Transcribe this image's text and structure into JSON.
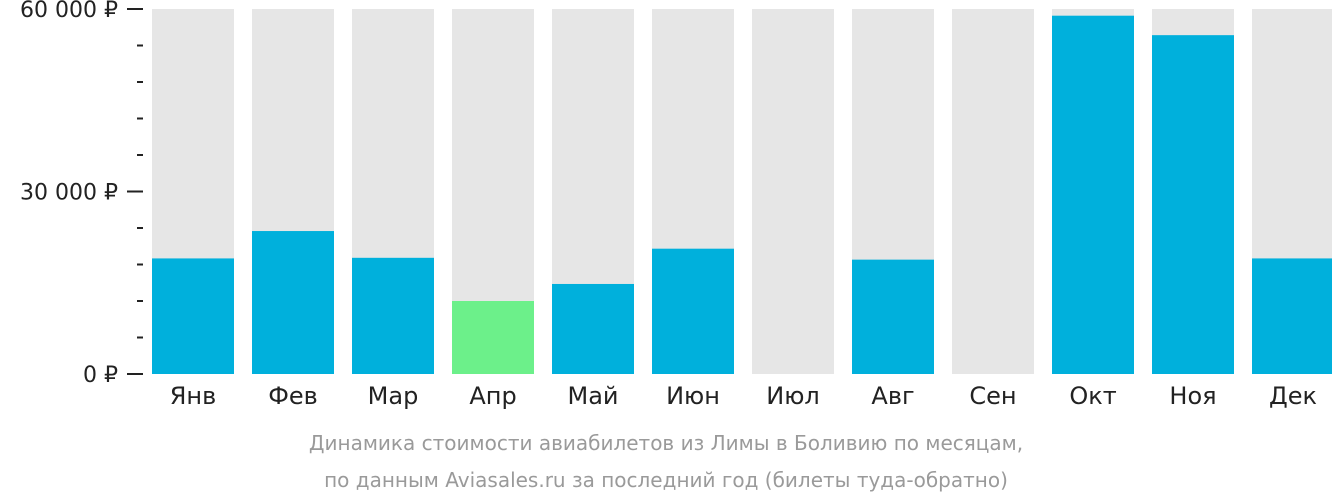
{
  "chart_data": {
    "type": "bar",
    "categories": [
      "Янв",
      "Фев",
      "Мар",
      "Апр",
      "Май",
      "Июн",
      "Июл",
      "Авг",
      "Сен",
      "Окт",
      "Ноя",
      "Дек"
    ],
    "values": [
      19000,
      23500,
      19100,
      12000,
      14800,
      20600,
      null,
      18800,
      null,
      58900,
      55700,
      19000
    ],
    "highlight_index": 3,
    "ylim": [
      0,
      60000
    ],
    "y_ticks": [
      {
        "value": 0,
        "label": "0 ₽"
      },
      {
        "value": 30000,
        "label": "30 000 ₽"
      },
      {
        "value": 60000,
        "label": "60 000 ₽"
      }
    ],
    "y_minor_step": 6000,
    "title": "",
    "xlabel": "",
    "ylabel": "",
    "grid": false,
    "colors": {
      "bar": "#00b0dc",
      "highlight": "#6cf08a",
      "background_column": "#e6e6e6",
      "axis_text": "#222222",
      "caption_text": "#9a9a9a"
    }
  },
  "caption": {
    "line1": "Динамика стоимости авиабилетов из Лимы в Боливию по месяцам,",
    "line2": "по данным Aviasales.ru за последний год (билеты туда-обратно)"
  }
}
